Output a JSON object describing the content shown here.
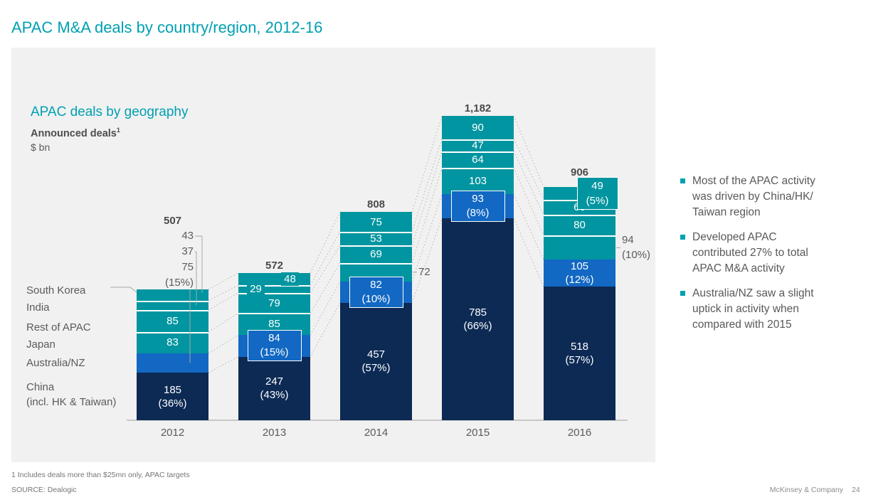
{
  "slide": {
    "title": "APAC M&A deals by country/region, 2012-16",
    "footnote": "1 Includes deals more than $25mn only, APAC targets",
    "source": "SOURCE: Dealogic",
    "brand": "McKinsey & Company",
    "page_number": "24"
  },
  "panel": {
    "title": "APAC deals by geography",
    "subtitle": "Announced deals",
    "subtitle_sup": "1",
    "unit": "$ bn"
  },
  "insights": [
    {
      "text": "Most of the APAC activity\nwas driven by China/HK/\nTaiwan region"
    },
    {
      "text": "Developed APAC\ncontributed 27% to total\nAPAC M&A activity"
    },
    {
      "text": "Australia/NZ saw a slight\nuptick in activity when\ncompared with 2015"
    }
  ],
  "colors": {
    "teal": "#0095A0",
    "blue": "#1268C3",
    "navy": "#0C2A54",
    "accent": "#00A0B2"
  },
  "chart_data": {
    "type": "bar",
    "stacked": true,
    "title": "APAC deals by geography",
    "ylabel": "$ bn",
    "categories": [
      "2012",
      "2013",
      "2014",
      "2015",
      "2016"
    ],
    "totals": [
      "507",
      "572",
      "808",
      "1,182",
      "906"
    ],
    "series": [
      {
        "name": "South Korea",
        "color": "teal",
        "values": [
          43,
          48,
          75,
          90,
          49
        ]
      },
      {
        "name": "India",
        "color": "teal",
        "values": [
          37,
          29,
          53,
          47,
          60
        ]
      },
      {
        "name": "Rest of APAC",
        "color": "teal",
        "values": [
          85,
          79,
          69,
          64,
          80
        ]
      },
      {
        "name": "Japan",
        "color": "teal",
        "values": [
          83,
          85,
          72,
          103,
          94
        ]
      },
      {
        "name": "Australia/NZ",
        "color": "blue",
        "values": [
          75,
          84,
          82,
          93,
          105
        ]
      },
      {
        "name": "China (incl. HK & Taiwan)",
        "color": "navy",
        "values": [
          185,
          247,
          457,
          785,
          518
        ]
      }
    ],
    "legend_items": [
      {
        "lines": [
          "South Korea"
        ]
      },
      {
        "lines": [
          "India"
        ]
      },
      {
        "lines": [
          "Rest of APAC"
        ]
      },
      {
        "lines": [
          "Japan"
        ]
      },
      {
        "lines": [
          "Australia/NZ"
        ]
      },
      {
        "lines": [
          "China",
          "(incl. HK & Taiwan)"
        ]
      }
    ],
    "segment_labels": [
      [
        {
          "mode": "above",
          "lines": [
            "43"
          ]
        },
        {
          "mode": "above",
          "lines": [
            "37"
          ]
        },
        {
          "mode": "inside",
          "lines": [
            "85"
          ]
        },
        {
          "mode": "inside",
          "lines": [
            "83"
          ]
        },
        {
          "mode": "above",
          "lines": [
            "75",
            "(15%)"
          ]
        },
        {
          "mode": "inside",
          "lines": [
            "185",
            "(36%)"
          ]
        }
      ],
      [
        {
          "mode": "inside",
          "dx": 22,
          "lines": [
            "48"
          ]
        },
        {
          "mode": "inside",
          "dx": -26,
          "lines": [
            "29"
          ]
        },
        {
          "mode": "inside",
          "lines": [
            "79"
          ]
        },
        {
          "mode": "inside",
          "lines": [
            "85"
          ]
        },
        {
          "mode": "callout",
          "lines": [
            "84",
            "(15%)"
          ]
        },
        {
          "mode": "inside",
          "lines": [
            "247",
            "(43%)"
          ]
        }
      ],
      [
        {
          "mode": "inside",
          "lines": [
            "75"
          ]
        },
        {
          "mode": "inside",
          "lines": [
            "53"
          ]
        },
        {
          "mode": "inside",
          "lines": [
            "69"
          ]
        },
        {
          "mode": "right",
          "lines": [
            "72"
          ]
        },
        {
          "mode": "callout",
          "lines": [
            "82",
            "(10%)"
          ]
        },
        {
          "mode": "inside",
          "lines": [
            "457",
            "(57%)"
          ]
        }
      ],
      [
        {
          "mode": "inside",
          "lines": [
            "90"
          ]
        },
        {
          "mode": "inside",
          "lines": [
            "47"
          ]
        },
        {
          "mode": "inside",
          "lines": [
            "64"
          ]
        },
        {
          "mode": "inside",
          "lines": [
            "103"
          ]
        },
        {
          "mode": "callout",
          "lines": [
            "93",
            "(8%)"
          ]
        },
        {
          "mode": "inside",
          "lines": [
            "785",
            "(66%)"
          ]
        }
      ],
      [
        {
          "mode": "callout-top",
          "lines": [
            "49",
            "(5%)"
          ]
        },
        {
          "mode": "inside",
          "lines": [
            "60"
          ]
        },
        {
          "mode": "inside",
          "lines": [
            "80"
          ]
        },
        {
          "mode": "right",
          "lines": [
            "94",
            "(10%)"
          ]
        },
        {
          "mode": "inside",
          "lines": [
            "105",
            "(12%)"
          ]
        },
        {
          "mode": "inside",
          "lines": [
            "518",
            "(57%)"
          ]
        }
      ]
    ]
  }
}
